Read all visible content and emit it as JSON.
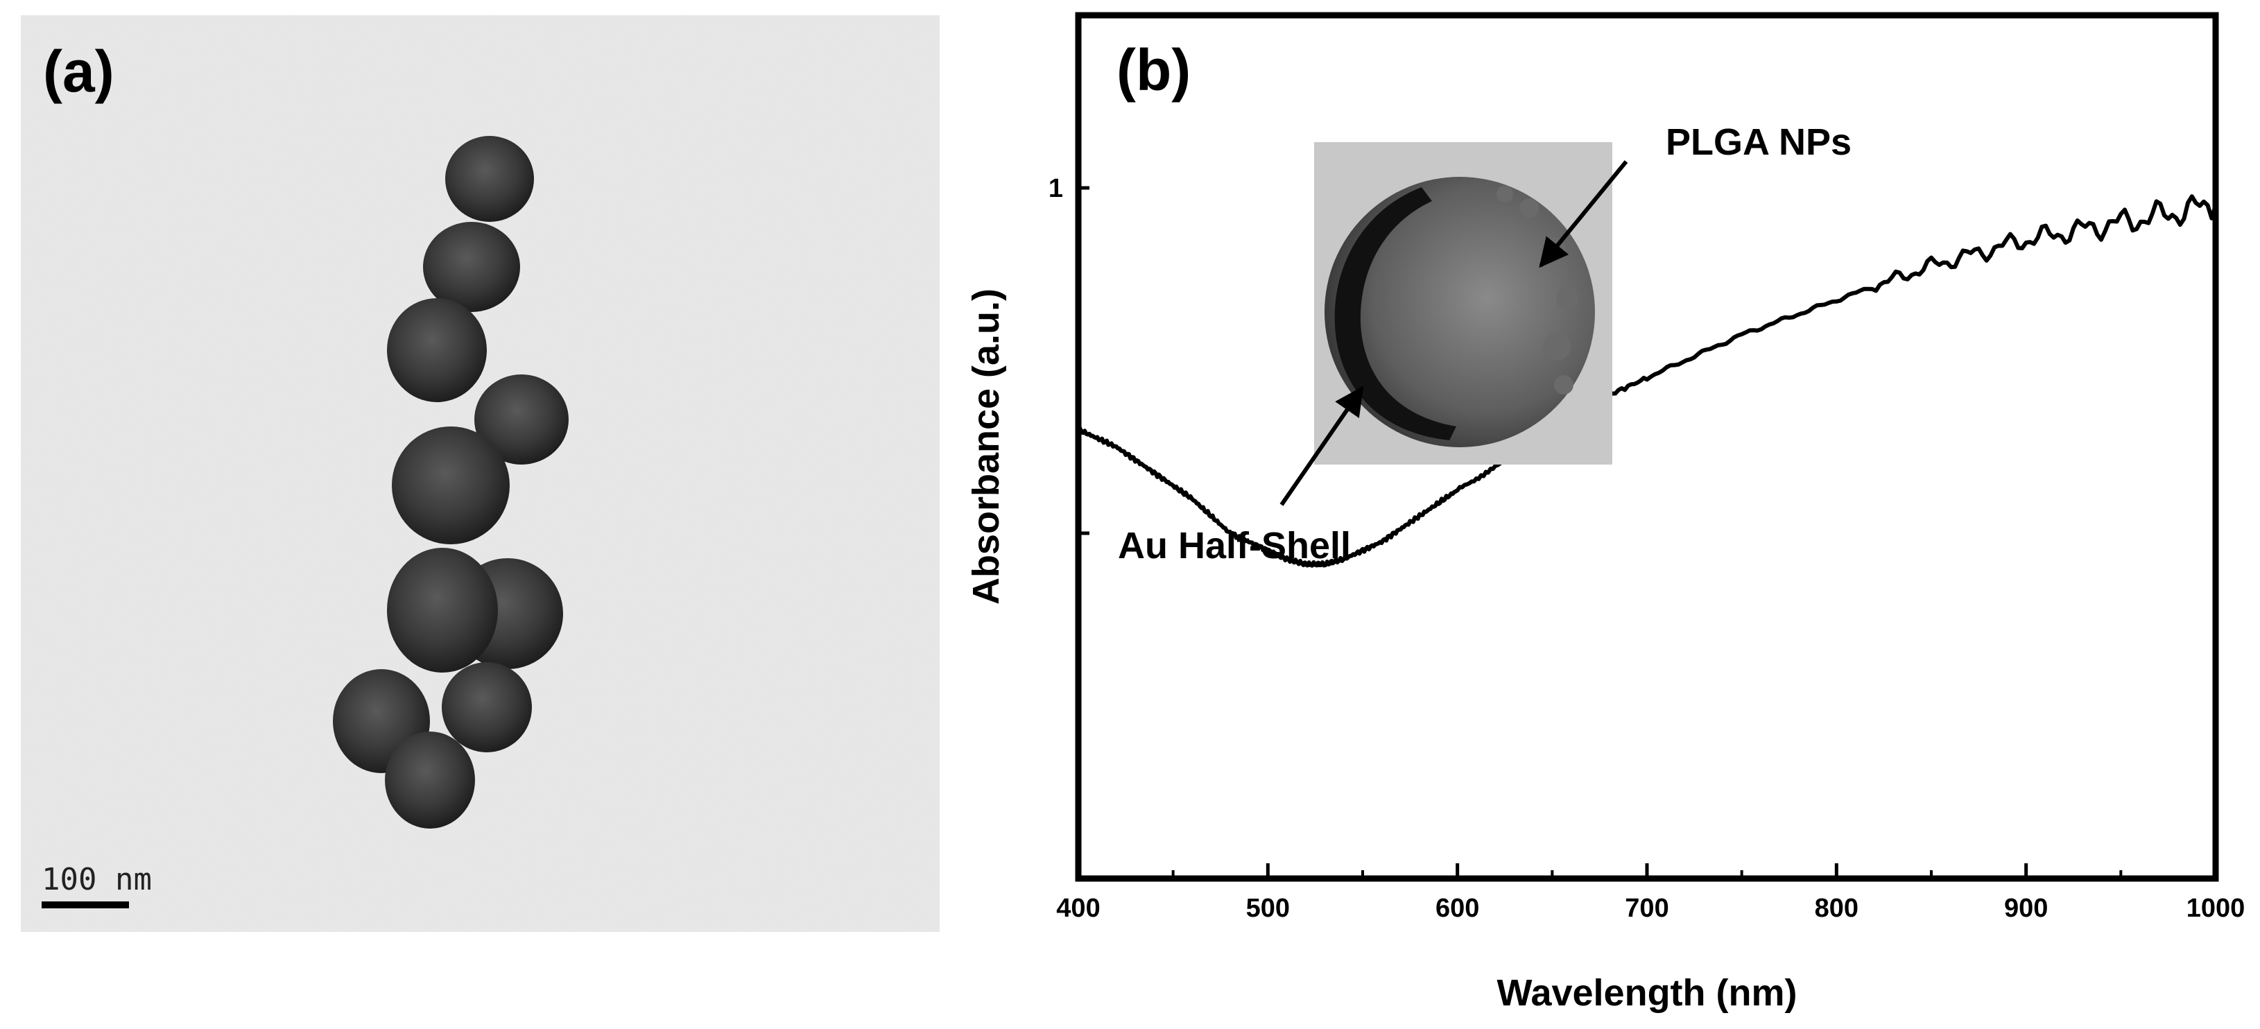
{
  "panels": {
    "a": {
      "label": "(a)",
      "scale_bar_text": "100 nm"
    },
    "b": {
      "label": "(b)"
    }
  },
  "chart_data": {
    "type": "line",
    "title": "",
    "xlabel": "Wavelength (nm)",
    "ylabel": "Absorbance (a.u.)",
    "xlim": [
      400,
      1000
    ],
    "xticks": [
      400,
      500,
      600,
      700,
      800,
      900,
      1000
    ],
    "xtick_labels": [
      "400",
      "500",
      "600",
      "700",
      "800",
      "900",
      "1000"
    ],
    "ylim": [
      0.6,
      1.1
    ],
    "yticks": [
      0.8,
      1.0
    ],
    "ytick_labels": [
      "",
      "1"
    ],
    "grid": false,
    "legend": "none",
    "line_color": "#000000",
    "series": [
      {
        "x": [
          400,
          420,
          440,
          460,
          480,
          500,
          510,
          520,
          530,
          540,
          560,
          580,
          600,
          630,
          660,
          700,
          750,
          800,
          850,
          900,
          950,
          1000
        ],
        "y": [
          0.86,
          0.85,
          0.835,
          0.82,
          0.8,
          0.79,
          0.785,
          0.782,
          0.782,
          0.785,
          0.795,
          0.81,
          0.825,
          0.845,
          0.87,
          0.89,
          0.915,
          0.935,
          0.955,
          0.97,
          0.98,
          0.99
        ]
      }
    ],
    "annotations": [
      {
        "text": "PLGA NPs"
      },
      {
        "text": "Au Half-Shell"
      }
    ]
  }
}
